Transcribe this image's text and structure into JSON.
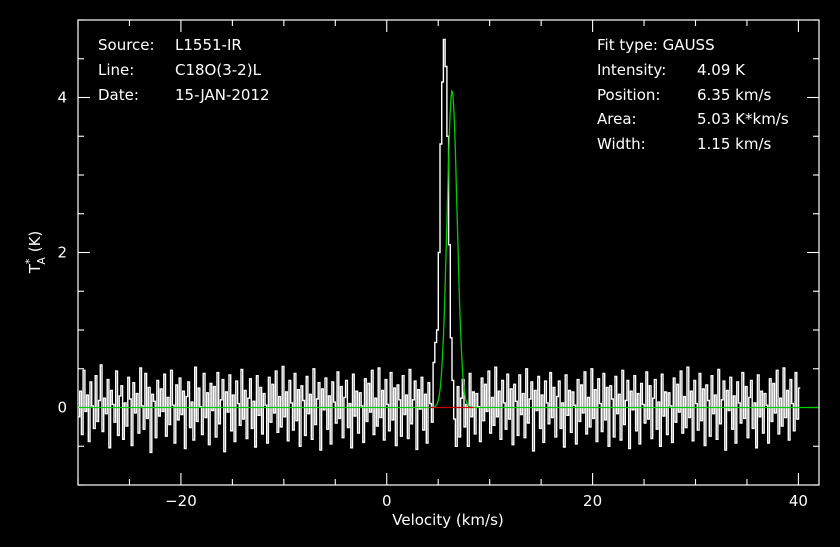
{
  "chart_data": {
    "type": "line",
    "xlabel": "Velocity (km/s)",
    "ylabel": {
      "base": "T",
      "sup": "*",
      "sub": "A",
      "unit": " (K)"
    },
    "xlim": [
      -30,
      42
    ],
    "ylim": [
      -1.0,
      5.0
    ],
    "xticks": [
      -20,
      0,
      20,
      40
    ],
    "yticks": [
      0,
      2,
      4
    ],
    "grid": false,
    "colors": {
      "background": "#000000",
      "spectrum": "#ffffff",
      "fit": "#00cc00",
      "baseline": "#cc0000",
      "axes": "#ffffff"
    },
    "info_left": [
      {
        "key": "Source:",
        "value": "L1551-IR"
      },
      {
        "key": "Line:",
        "value": "C18O(3-2)L"
      },
      {
        "key": "Date:",
        "value": "15-JAN-2012"
      }
    ],
    "info_right": {
      "fit_type": "Fit type: GAUSS",
      "rows": [
        {
          "key": "Intensity:",
          "value": "4.09 K"
        },
        {
          "key": "Position:",
          "value": "6.35 km/s"
        },
        {
          "key": "Area:",
          "value": "5.03 K*km/s"
        },
        {
          "key": "Width:",
          "value": "1.15 km/s"
        }
      ]
    },
    "fit": {
      "amplitude": 4.09,
      "center": 6.35,
      "fwhm": 1.15
    },
    "baseline_segment": [
      4.2,
      8.4
    ],
    "series": [
      {
        "x_start": -30.0,
        "x_step": 0.1667,
        "values": [
          -0.12,
          0.21,
          -0.35,
          0.48,
          -0.05,
          0.16,
          -0.44,
          0.33,
          0.02,
          -0.27,
          0.41,
          -0.18,
          0.09,
          0.55,
          -0.31,
          0.12,
          -0.08,
          0.36,
          -0.52,
          0.22,
          0.04,
          -0.19,
          0.47,
          -0.36,
          0.15,
          0.28,
          -0.41,
          0.06,
          -0.24,
          0.39,
          0.11,
          -0.49,
          0.32,
          -0.07,
          0.18,
          -0.33,
          0.51,
          0.02,
          -0.28,
          0.44,
          -0.14,
          0.26,
          -0.58,
          0.17,
          0.08,
          -0.39,
          0.35,
          -0.11,
          0.24,
          -0.05,
          0.43,
          -0.37,
          0.13,
          -0.22,
          0.48,
          0.03,
          -0.46,
          0.29,
          -0.16,
          0.38,
          -0.09,
          0.21,
          -0.53,
          0.14,
          0.33,
          -0.26,
          0.07,
          -0.42,
          0.52,
          -0.18,
          0.25,
          0.01,
          -0.35,
          0.44,
          -0.13,
          0.19,
          -0.48,
          0.31,
          -0.04,
          0.27,
          -0.38,
          0.45,
          -0.21,
          0.1,
          0.36,
          -0.57,
          0.2,
          -0.06,
          0.42,
          -0.3,
          0.16,
          -0.44,
          0.34,
          0.05,
          -0.23,
          0.49,
          -0.15,
          0.22,
          -0.4,
          0.12,
          0.37,
          -0.27,
          0.08,
          -0.51,
          0.41,
          -0.1,
          0.26,
          -0.34,
          0.18,
          0.03,
          -0.46,
          0.39,
          -0.19,
          0.3,
          -0.07,
          0.47,
          -0.32,
          0.14,
          -0.25,
          0.53,
          -0.12,
          0.2,
          -0.43,
          0.35,
          0.06,
          -0.29,
          0.44,
          -0.17,
          0.23,
          -0.5,
          0.28,
          0.09,
          -0.36,
          0.4,
          -0.08,
          0.17,
          -0.41,
          0.5,
          -0.22,
          0.11,
          0.32,
          -0.55,
          0.24,
          -0.03,
          0.38,
          -0.28,
          0.15,
          -0.47,
          0.33,
          0.07,
          -0.2,
          0.46,
          -0.14,
          0.27,
          -0.39,
          0.13,
          0.35,
          -0.26,
          0.05,
          -0.52,
          0.43,
          -0.11,
          0.21,
          -0.33,
          0.19,
          0.02,
          -0.45,
          0.37,
          -0.18,
          0.31,
          -0.06,
          0.48,
          -0.35,
          0.12,
          -0.24,
          0.51,
          -0.13,
          0.22,
          -0.42,
          0.36,
          0.04,
          -0.3,
          0.45,
          -0.16,
          0.25,
          -0.49,
          0.29,
          0.1,
          -0.37,
          0.41,
          -0.09,
          0.16,
          -0.4,
          0.49,
          -0.21,
          0.1,
          0.34,
          -0.54,
          0.23,
          -0.02,
          0.39,
          -0.29,
          0.17,
          -0.46,
          0.32,
          0.05,
          -0.19,
          0.58,
          0.84,
          1.0,
          2.0,
          3.4,
          4.2,
          4.75,
          4.4,
          3.5,
          2.1,
          0.9,
          0.35,
          -0.15,
          -0.5,
          0.27,
          -0.38,
          0.12,
          0.36,
          -0.25,
          0.04,
          -0.5,
          0.44,
          -0.12,
          0.2,
          -0.34,
          0.18,
          0.01,
          -0.44,
          0.38,
          -0.17,
          0.3,
          -0.05,
          0.47,
          -0.33,
          0.13,
          -0.23,
          0.52,
          -0.12,
          0.21,
          -0.41,
          0.35,
          0.06,
          -0.28,
          0.43,
          -0.15,
          0.24,
          -0.48,
          0.3,
          0.08,
          -0.36,
          0.42,
          -0.09,
          0.18,
          -0.39,
          0.5,
          -0.2,
          0.11,
          0.33,
          -0.56,
          0.22,
          -0.04,
          0.4,
          -0.27,
          0.16,
          -0.45,
          0.34,
          0.06,
          -0.21,
          0.45,
          -0.13,
          0.26,
          -0.38,
          0.14,
          0.34,
          -0.27,
          0.06,
          -0.51,
          0.42,
          -0.1,
          0.22,
          -0.32,
          0.2,
          0.03,
          -0.47,
          0.36,
          -0.18,
          0.29,
          -0.07,
          0.46,
          -0.34,
          0.13,
          -0.25,
          0.5,
          -0.14,
          0.23,
          -0.44,
          0.37,
          0.05,
          -0.31,
          0.44,
          -0.16,
          0.26,
          -0.5,
          0.28,
          0.11,
          -0.38,
          0.4,
          -0.08,
          0.17,
          -0.42,
          0.48,
          -0.22,
          0.09,
          0.35,
          -0.53,
          0.21,
          -0.03,
          0.41,
          -0.3,
          0.18,
          -0.47,
          0.31,
          0.04,
          -0.2,
          0.46,
          -0.15,
          0.28,
          -0.4,
          0.12,
          0.36,
          -0.28,
          0.07,
          -0.5,
          0.43,
          -0.11,
          0.2,
          -0.35,
          0.19,
          0.02,
          -0.45,
          0.38,
          -0.19,
          0.3,
          -0.06,
          0.47,
          -0.33,
          0.14,
          -0.26,
          0.52,
          -0.13,
          0.21,
          -0.43,
          0.35,
          0.05,
          -0.29,
          0.44,
          -0.17,
          0.24,
          -0.49,
          0.29,
          0.09,
          -0.37,
          0.41,
          -0.08,
          0.16,
          -0.41,
          0.49,
          -0.21,
          0.1,
          0.34,
          -0.55,
          0.22,
          -0.04,
          0.39,
          -0.28,
          0.15,
          -0.46,
          0.33,
          0.06,
          -0.2,
          0.45,
          -0.14,
          0.27,
          -0.39,
          0.13,
          0.35,
          -0.27,
          0.06,
          -0.52,
          0.42,
          -0.12,
          0.21,
          -0.33,
          0.18,
          0.03,
          -0.46,
          0.37,
          -0.18,
          0.31,
          -0.07,
          0.48,
          -0.34,
          0.12,
          -0.24,
          0.51,
          -0.13,
          0.22,
          -0.42,
          0.36,
          0.05,
          -0.3,
          0.45,
          -0.15,
          0.25
        ]
      }
    ]
  }
}
